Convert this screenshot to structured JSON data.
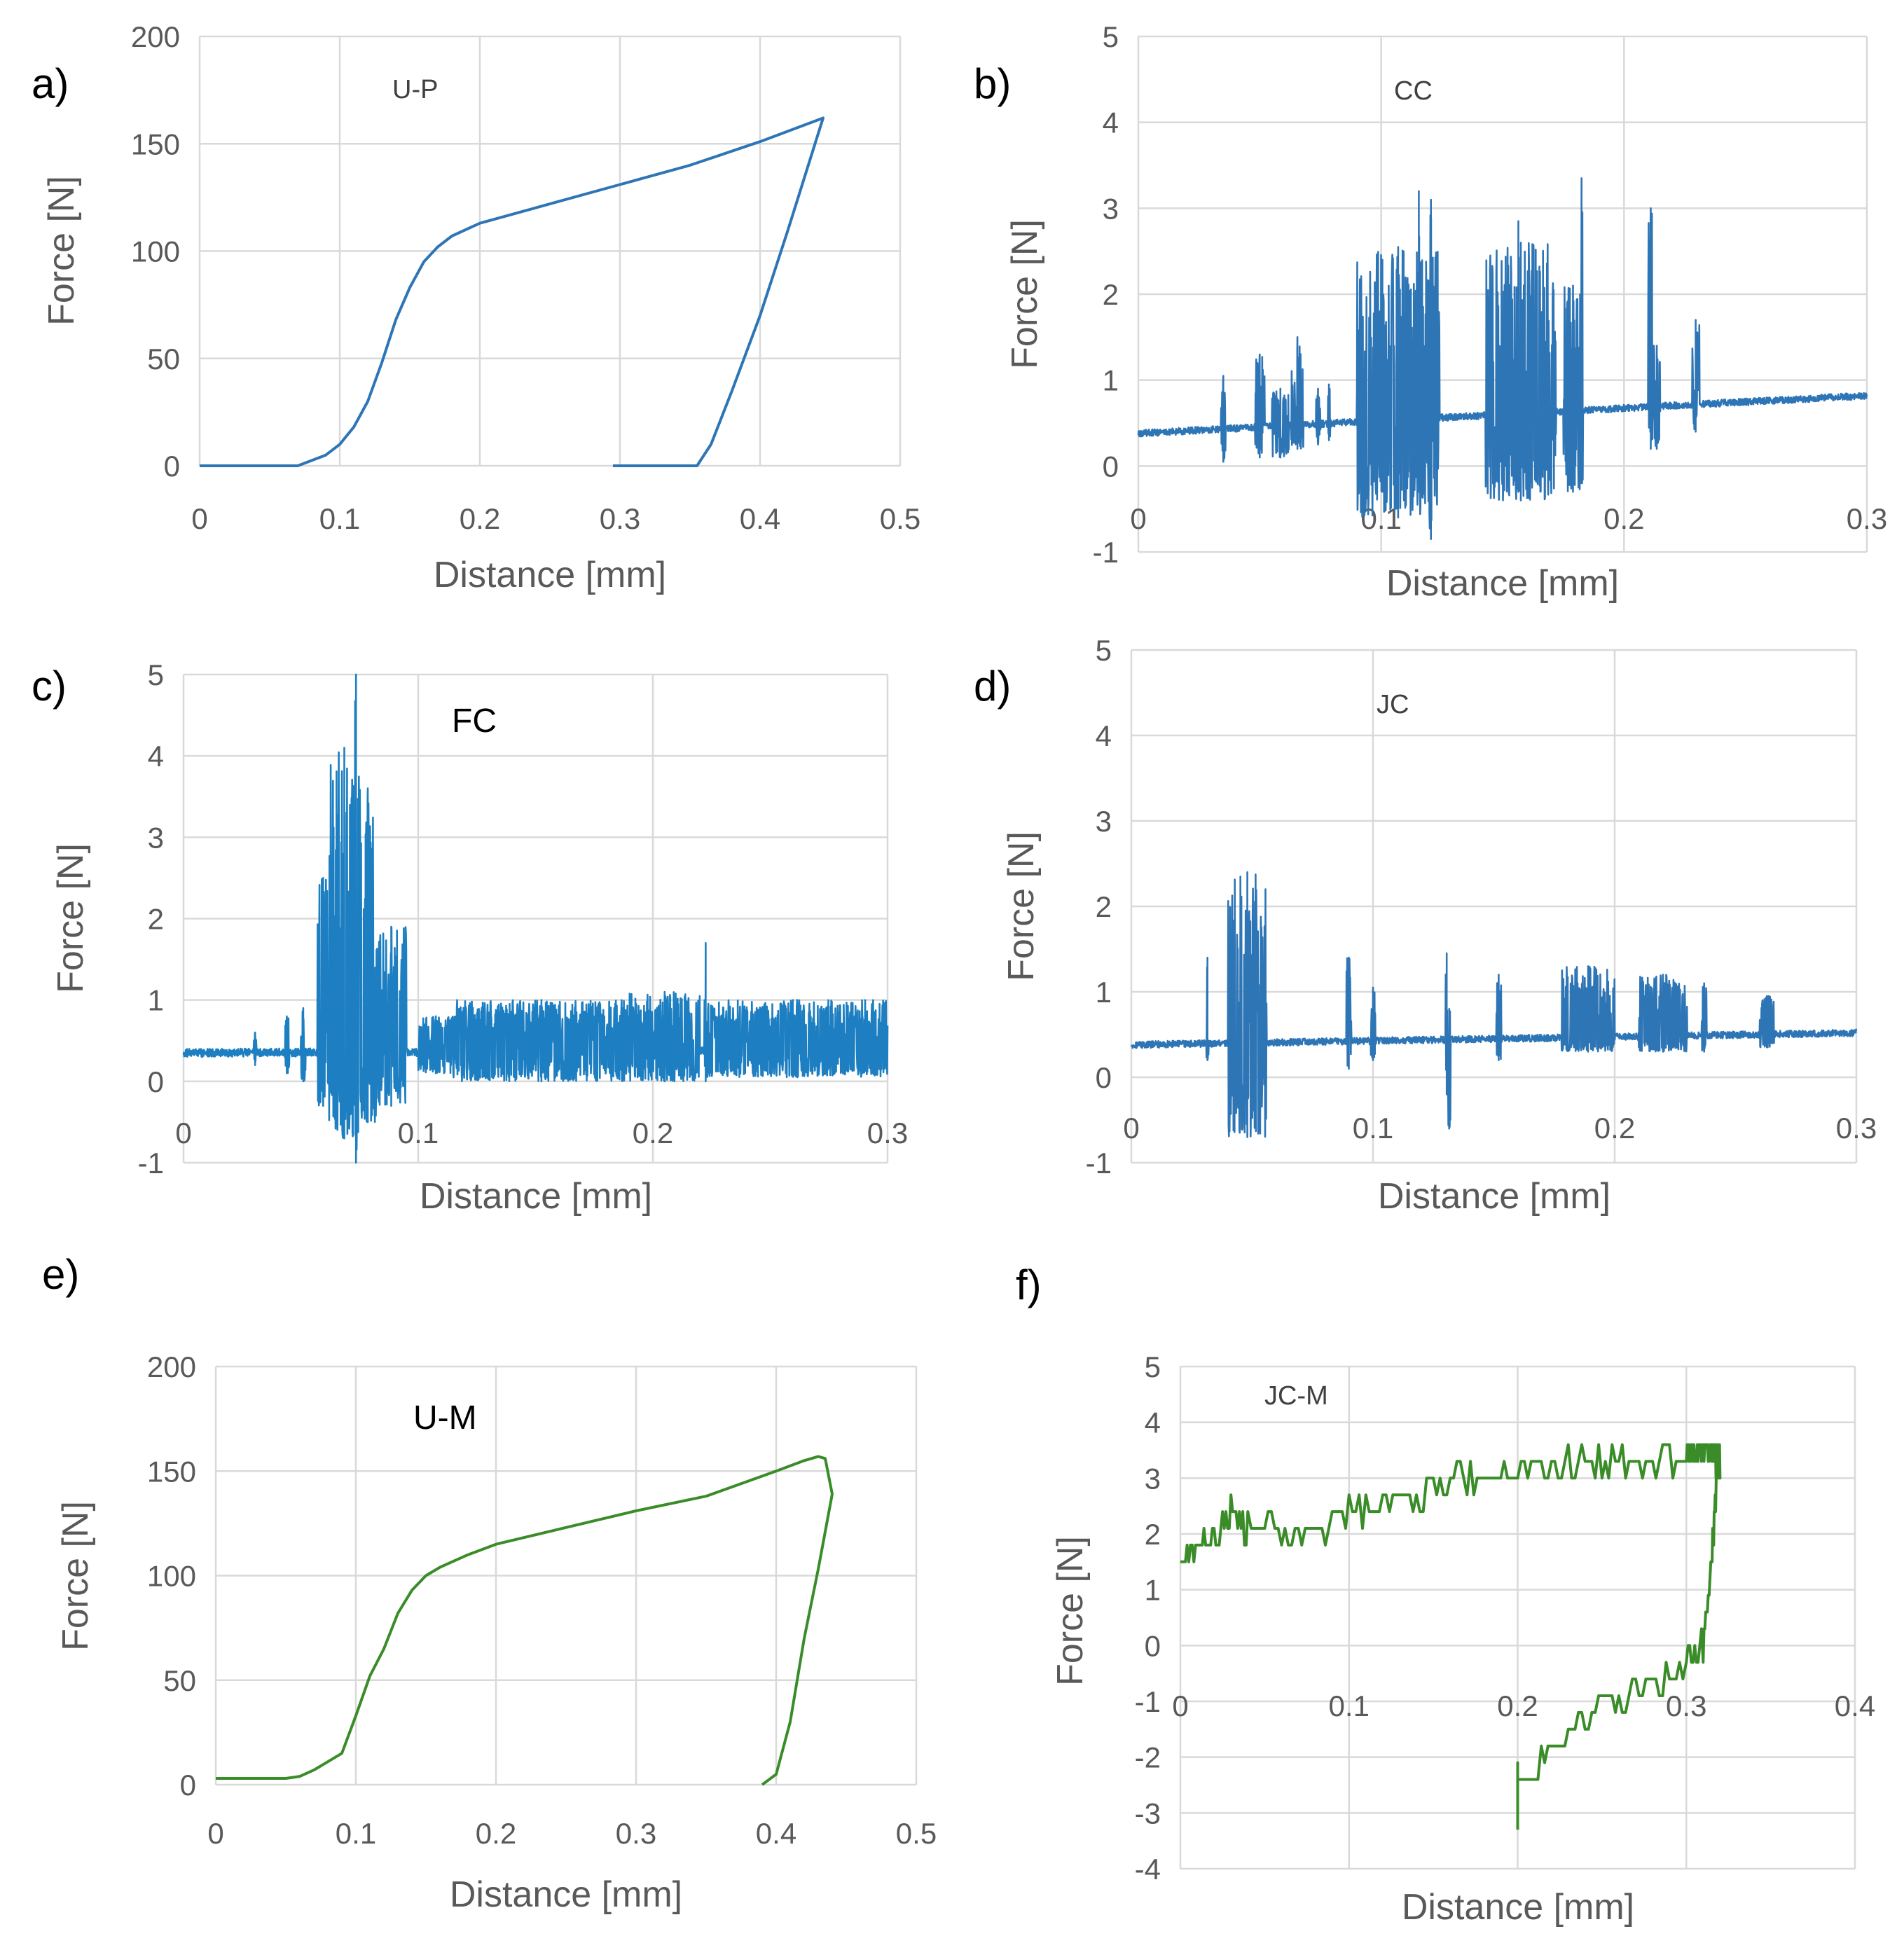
{
  "colors": {
    "blue": "#2e75b6",
    "green": "#3a8c28",
    "grid": "#d9d9d9",
    "text": "#595959"
  },
  "chart_data": [
    {
      "panel": "a)",
      "title": "U-P",
      "type": "line",
      "xlabel": "Distance [mm]",
      "ylabel": "Force [N]",
      "xlim": [
        0,
        0.5
      ],
      "ylim": [
        0,
        200
      ],
      "xticks": [
        "0",
        "0.1",
        "0.2",
        "0.3",
        "0.4",
        "0.5"
      ],
      "yticks": [
        "0",
        "50",
        "100",
        "150",
        "200"
      ],
      "color": "#2e75b6",
      "noise": 0,
      "series": [
        {
          "name": "U-P",
          "x": [
            0,
            0.07,
            0.09,
            0.1,
            0.11,
            0.12,
            0.13,
            0.14,
            0.15,
            0.16,
            0.17,
            0.18,
            0.2,
            0.25,
            0.3,
            0.35,
            0.4,
            0.445,
            0.42,
            0.4,
            0.38,
            0.365,
            0.355,
            0.295
          ],
          "y": [
            0,
            0,
            5,
            10,
            18,
            30,
            48,
            68,
            83,
            95,
            102,
            107,
            113,
            122,
            131,
            140,
            151,
            162,
            110,
            70,
            35,
            10,
            0,
            0
          ]
        }
      ]
    },
    {
      "panel": "b)",
      "title": "CC",
      "type": "line",
      "xlabel": "Distance [mm]",
      "ylabel": "Force [N]",
      "xlim": [
        0,
        0.3
      ],
      "ylim": [
        -1,
        5
      ],
      "xticks": [
        "0",
        "0.1",
        "0.2",
        "0.3"
      ],
      "yticks": [
        "-1",
        "0",
        "1",
        "2",
        "3",
        "4",
        "5"
      ],
      "color": "#2e75b6",
      "noise": 0.04,
      "baseline": [
        [
          0,
          0.38
        ],
        [
          0.3,
          0.82
        ]
      ],
      "bursts": [
        {
          "start": 0.034,
          "end": 0.036,
          "max": 1.05,
          "min": 0.05
        },
        {
          "start": 0.048,
          "end": 0.052,
          "max": 1.3,
          "min": 0.1
        },
        {
          "start": 0.055,
          "end": 0.062,
          "max": 0.9,
          "min": 0.1
        },
        {
          "start": 0.063,
          "end": 0.068,
          "max": 1.5,
          "min": 0.2
        },
        {
          "start": 0.073,
          "end": 0.075,
          "max": 0.9,
          "min": 0.25
        },
        {
          "start": 0.078,
          "end": 0.079,
          "max": 0.95,
          "min": 0.3
        },
        {
          "start": 0.09,
          "end": 0.124,
          "max": 2.55,
          "min": -0.6
        },
        {
          "start": 0.1,
          "end": 0.101,
          "max": 2.4,
          "min": -0.3
        },
        {
          "start": 0.115,
          "end": 0.116,
          "max": 3.2,
          "min": -0.3
        },
        {
          "start": 0.12,
          "end": 0.121,
          "max": 3.1,
          "min": -0.85
        },
        {
          "start": 0.143,
          "end": 0.172,
          "max": 2.6,
          "min": -0.4
        },
        {
          "start": 0.156,
          "end": 0.157,
          "max": 2.85,
          "min": -0.3
        },
        {
          "start": 0.175,
          "end": 0.183,
          "max": 2.1,
          "min": -0.3
        },
        {
          "start": 0.182,
          "end": 0.183,
          "max": 3.35,
          "min": -0.2
        },
        {
          "start": 0.21,
          "end": 0.212,
          "max": 3.0,
          "min": 0.2
        },
        {
          "start": 0.212,
          "end": 0.215,
          "max": 1.4,
          "min": 0.2
        },
        {
          "start": 0.228,
          "end": 0.231,
          "max": 1.7,
          "min": 0.4
        }
      ]
    },
    {
      "panel": "c)",
      "title": "FC",
      "type": "line",
      "xlabel": "Distance [mm]",
      "ylabel": "Force [N]",
      "xlim": [
        0,
        0.3
      ],
      "ylim": [
        -1,
        5
      ],
      "xticks": [
        "0",
        "0.1",
        "0.2",
        "0.3"
      ],
      "yticks": [
        "-1",
        "0",
        "1",
        "2",
        "3",
        "4",
        "5"
      ],
      "color": "#1d7fc1",
      "noise": 0.05,
      "baseline": [
        [
          0,
          0.35
        ],
        [
          0.3,
          0.38
        ]
      ],
      "bursts": [
        {
          "start": 0.03,
          "end": 0.031,
          "max": 0.6,
          "min": 0.2
        },
        {
          "start": 0.043,
          "end": 0.045,
          "max": 0.8,
          "min": 0.1
        },
        {
          "start": 0.05,
          "end": 0.052,
          "max": 0.9,
          "min": 0.0
        },
        {
          "start": 0.057,
          "end": 0.062,
          "max": 2.5,
          "min": -0.3
        },
        {
          "start": 0.062,
          "end": 0.075,
          "max": 4.1,
          "min": -0.7
        },
        {
          "start": 0.073,
          "end": 0.074,
          "max": 5.0,
          "min": -1.0
        },
        {
          "start": 0.075,
          "end": 0.082,
          "max": 3.6,
          "min": -0.5
        },
        {
          "start": 0.082,
          "end": 0.095,
          "max": 1.9,
          "min": -0.3
        },
        {
          "start": 0.1,
          "end": 0.115,
          "max": 0.8,
          "min": 0.1
        },
        {
          "start": 0.115,
          "end": 0.19,
          "max": 1.0,
          "min": 0.0
        },
        {
          "start": 0.19,
          "end": 0.22,
          "max": 1.1,
          "min": 0.0
        },
        {
          "start": 0.222,
          "end": 0.223,
          "max": 1.7,
          "min": 0.0
        },
        {
          "start": 0.223,
          "end": 0.3,
          "max": 1.0,
          "min": 0.05
        }
      ]
    },
    {
      "panel": "d)",
      "title": "JC",
      "type": "line",
      "xlabel": "Distance [mm]",
      "ylabel": "Force [N]",
      "xlim": [
        0,
        0.3
      ],
      "ylim": [
        -1,
        5
      ],
      "xticks": [
        "0",
        "0.1",
        "0.2",
        "0.3"
      ],
      "yticks": [
        "-1",
        "0",
        "1",
        "2",
        "3",
        "4",
        "5"
      ],
      "color": "#2e75b6",
      "noise": 0.04,
      "baseline": [
        [
          0,
          0.38
        ],
        [
          0.3,
          0.52
        ]
      ],
      "bursts": [
        {
          "start": 0.031,
          "end": 0.032,
          "max": 1.4,
          "min": 0.2
        },
        {
          "start": 0.04,
          "end": 0.056,
          "max": 2.4,
          "min": -0.7
        },
        {
          "start": 0.089,
          "end": 0.091,
          "max": 1.4,
          "min": 0.1
        },
        {
          "start": 0.099,
          "end": 0.101,
          "max": 1.05,
          "min": 0.2
        },
        {
          "start": 0.13,
          "end": 0.131,
          "max": 1.45,
          "min": -0.2
        },
        {
          "start": 0.131,
          "end": 0.132,
          "max": 0.8,
          "min": -0.6
        },
        {
          "start": 0.151,
          "end": 0.153,
          "max": 1.2,
          "min": 0.2
        },
        {
          "start": 0.178,
          "end": 0.2,
          "max": 1.3,
          "min": 0.3
        },
        {
          "start": 0.21,
          "end": 0.23,
          "max": 1.2,
          "min": 0.3
        },
        {
          "start": 0.236,
          "end": 0.238,
          "max": 1.1,
          "min": 0.3
        },
        {
          "start": 0.26,
          "end": 0.266,
          "max": 0.95,
          "min": 0.35
        }
      ]
    },
    {
      "panel": "e)",
      "title": "U-M",
      "type": "line",
      "xlabel": "Distance [mm]",
      "ylabel": "Force [N]",
      "xlim": [
        0,
        0.5
      ],
      "ylim": [
        0,
        200
      ],
      "xticks": [
        "0",
        "0.1",
        "0.2",
        "0.3",
        "0.4",
        "0.5"
      ],
      "yticks": [
        "0",
        "50",
        "100",
        "150",
        "200"
      ],
      "color": "#3a8c28",
      "noise": 0,
      "series": [
        {
          "name": "U-M",
          "x": [
            0,
            0.05,
            0.06,
            0.07,
            0.08,
            0.09,
            0.1,
            0.11,
            0.12,
            0.13,
            0.14,
            0.15,
            0.16,
            0.18,
            0.2,
            0.25,
            0.3,
            0.35,
            0.4,
            0.42,
            0.43,
            0.435,
            0.44,
            0.43,
            0.42,
            0.41,
            0.4,
            0.39
          ],
          "y": [
            3,
            3,
            4,
            7,
            11,
            15,
            33,
            52,
            65,
            82,
            93,
            100,
            104,
            110,
            115,
            123,
            131,
            138,
            150,
            155,
            157,
            156,
            139,
            103,
            70,
            30,
            5,
            0
          ]
        }
      ]
    },
    {
      "panel": "f)",
      "title": "JC-M",
      "type": "line",
      "xlabel": "Distance [mm]",
      "ylabel": "Force [N]",
      "xlim": [
        0,
        0.4
      ],
      "ylim": [
        -4,
        5
      ],
      "xticks": [
        "0",
        "0.1",
        "0.2",
        "0.3",
        "0.4"
      ],
      "yticks": [
        "-4",
        "-3",
        "-2",
        "-1",
        "0",
        "1",
        "2",
        "3",
        "4",
        "5"
      ],
      "color": "#3a8c28",
      "noise": 0,
      "series": [
        {
          "name": "JC-M",
          "x": [
            0,
            0.01,
            0.02,
            0.03,
            0.04,
            0.06,
            0.08,
            0.1,
            0.12,
            0.14,
            0.16,
            0.18,
            0.2,
            0.22,
            0.24,
            0.26,
            0.28,
            0.3,
            0.305,
            0.31,
            0.315,
            0.317,
            0.32,
            0.318,
            0.315,
            0.31,
            0.3,
            0.28,
            0.26,
            0.24,
            0.22,
            0.2,
            0.2
          ],
          "y": [
            1.5,
            1.9,
            2.0,
            2.4,
            2.1,
            2.0,
            2.0,
            2.4,
            2.6,
            2.7,
            3.0,
            3.1,
            3.2,
            3.2,
            3.3,
            3.3,
            3.4,
            3.4,
            3.5,
            3.4,
            3.4,
            3.4,
            3.4,
            3.0,
            1.5,
            0,
            -0.3,
            -0.6,
            -1.0,
            -1.4,
            -2.0,
            -2.3,
            -3.0
          ]
        }
      ]
    }
  ]
}
